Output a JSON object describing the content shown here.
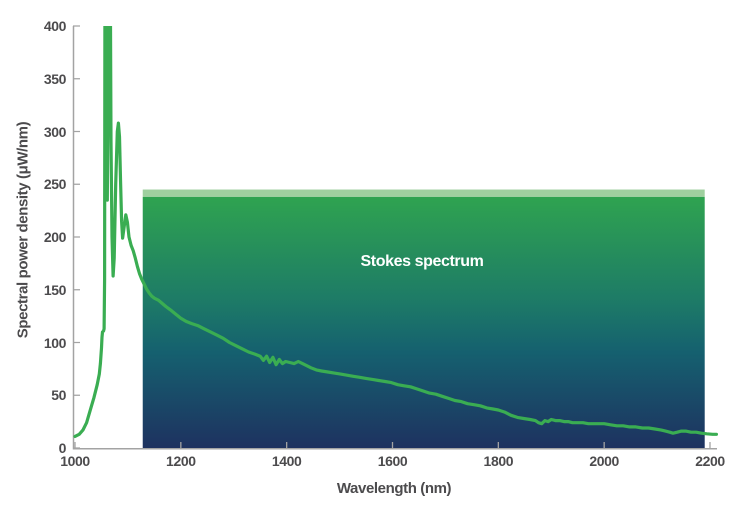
{
  "chart_data": {
    "type": "line",
    "title": "",
    "xlabel": "Wavelength (nm)",
    "ylabel": "Spectral power density (μW/nm)",
    "xlim": [
      1000,
      2200
    ],
    "ylim": [
      0,
      400
    ],
    "x_ticks": [
      1000,
      1200,
      1400,
      1600,
      1800,
      2000,
      2200
    ],
    "y_ticks": [
      0,
      50,
      100,
      150,
      200,
      250,
      300,
      350,
      400
    ],
    "grid": false,
    "legend": "none",
    "line_color": "#3aad52",
    "region": {
      "label": "Stokes spectrum",
      "label_color": "#ffffff",
      "x_start": 1128,
      "x_end": 2190,
      "y_top": 245,
      "band_color": "#9fd09f",
      "band_value_span": 7,
      "gradient_stops": [
        "#2fa350",
        "#1d7a67",
        "#15606f",
        "#1e3260"
      ]
    },
    "series": [
      {
        "points": [
          [
            1000,
            11
          ],
          [
            1008,
            13
          ],
          [
            1015,
            17
          ],
          [
            1022,
            24
          ],
          [
            1030,
            38
          ],
          [
            1036,
            48
          ],
          [
            1042,
            60
          ],
          [
            1046,
            70
          ],
          [
            1048,
            80
          ],
          [
            1050,
            95
          ],
          [
            1051,
            105
          ],
          [
            1052,
            110
          ],
          [
            1054,
            111
          ],
          [
            1055,
            113
          ],
          [
            1056,
            160
          ],
          [
            1056.5,
            400
          ],
          [
            1060,
            400
          ],
          [
            1061,
            235
          ],
          [
            1062,
            300
          ],
          [
            1062.5,
            400
          ],
          [
            1067,
            400
          ],
          [
            1068,
            290
          ],
          [
            1070,
            200
          ],
          [
            1072,
            163
          ],
          [
            1074,
            180
          ],
          [
            1077,
            250
          ],
          [
            1080,
            300
          ],
          [
            1082,
            308
          ],
          [
            1084,
            295
          ],
          [
            1086,
            255
          ],
          [
            1088,
            215
          ],
          [
            1090,
            199
          ],
          [
            1093,
            210
          ],
          [
            1096,
            221
          ],
          [
            1099,
            214
          ],
          [
            1102,
            200
          ],
          [
            1106,
            192
          ],
          [
            1110,
            187
          ],
          [
            1114,
            180
          ],
          [
            1118,
            172
          ],
          [
            1122,
            165
          ],
          [
            1126,
            160
          ],
          [
            1130,
            156
          ],
          [
            1135,
            151
          ],
          [
            1140,
            147
          ],
          [
            1145,
            144
          ],
          [
            1150,
            142
          ],
          [
            1158,
            140
          ],
          [
            1165,
            137
          ],
          [
            1172,
            134
          ],
          [
            1180,
            131
          ],
          [
            1190,
            127
          ],
          [
            1200,
            123
          ],
          [
            1210,
            120
          ],
          [
            1220,
            118
          ],
          [
            1232,
            116
          ],
          [
            1244,
            113
          ],
          [
            1256,
            110
          ],
          [
            1268,
            107
          ],
          [
            1280,
            104
          ],
          [
            1292,
            100
          ],
          [
            1304,
            97
          ],
          [
            1316,
            94
          ],
          [
            1328,
            91
          ],
          [
            1340,
            89
          ],
          [
            1350,
            87
          ],
          [
            1356,
            83
          ],
          [
            1362,
            87
          ],
          [
            1368,
            81
          ],
          [
            1374,
            86
          ],
          [
            1380,
            79
          ],
          [
            1386,
            84
          ],
          [
            1392,
            80
          ],
          [
            1398,
            82
          ],
          [
            1406,
            81
          ],
          [
            1414,
            80
          ],
          [
            1422,
            82
          ],
          [
            1430,
            80
          ],
          [
            1438,
            78
          ],
          [
            1446,
            76
          ],
          [
            1456,
            74
          ],
          [
            1466,
            73
          ],
          [
            1478,
            72
          ],
          [
            1490,
            71
          ],
          [
            1502,
            70
          ],
          [
            1514,
            69
          ],
          [
            1526,
            68
          ],
          [
            1538,
            67
          ],
          [
            1550,
            66
          ],
          [
            1562,
            65
          ],
          [
            1574,
            64
          ],
          [
            1586,
            63
          ],
          [
            1598,
            62
          ],
          [
            1610,
            60
          ],
          [
            1622,
            59
          ],
          [
            1634,
            58
          ],
          [
            1646,
            56
          ],
          [
            1658,
            54
          ],
          [
            1670,
            52
          ],
          [
            1682,
            51
          ],
          [
            1694,
            49
          ],
          [
            1706,
            47
          ],
          [
            1718,
            45
          ],
          [
            1730,
            44
          ],
          [
            1742,
            42
          ],
          [
            1754,
            41
          ],
          [
            1766,
            40
          ],
          [
            1778,
            38
          ],
          [
            1790,
            37
          ],
          [
            1800,
            36
          ],
          [
            1812,
            34
          ],
          [
            1824,
            31
          ],
          [
            1836,
            29
          ],
          [
            1848,
            28
          ],
          [
            1860,
            27
          ],
          [
            1870,
            26
          ],
          [
            1876,
            24
          ],
          [
            1882,
            23
          ],
          [
            1888,
            26
          ],
          [
            1894,
            25
          ],
          [
            1900,
            27
          ],
          [
            1908,
            26
          ],
          [
            1916,
            26
          ],
          [
            1924,
            25
          ],
          [
            1932,
            25
          ],
          [
            1940,
            24
          ],
          [
            1950,
            24
          ],
          [
            1960,
            24
          ],
          [
            1970,
            23
          ],
          [
            1980,
            23
          ],
          [
            1990,
            23
          ],
          [
            2000,
            23
          ],
          [
            2012,
            22
          ],
          [
            2024,
            21
          ],
          [
            2036,
            21
          ],
          [
            2048,
            20
          ],
          [
            2060,
            20
          ],
          [
            2072,
            19
          ],
          [
            2084,
            19
          ],
          [
            2096,
            18
          ],
          [
            2108,
            17
          ],
          [
            2116,
            16
          ],
          [
            2124,
            15
          ],
          [
            2130,
            14
          ],
          [
            2138,
            15
          ],
          [
            2146,
            16
          ],
          [
            2154,
            16
          ],
          [
            2164,
            15
          ],
          [
            2174,
            15
          ],
          [
            2184,
            14
          ],
          [
            2194,
            13.5
          ],
          [
            2205,
            13
          ],
          [
            2212,
            13
          ]
        ]
      }
    ]
  },
  "axis": {
    "text_color": "#4c4b4d",
    "line_color": "#a3a3a3"
  }
}
